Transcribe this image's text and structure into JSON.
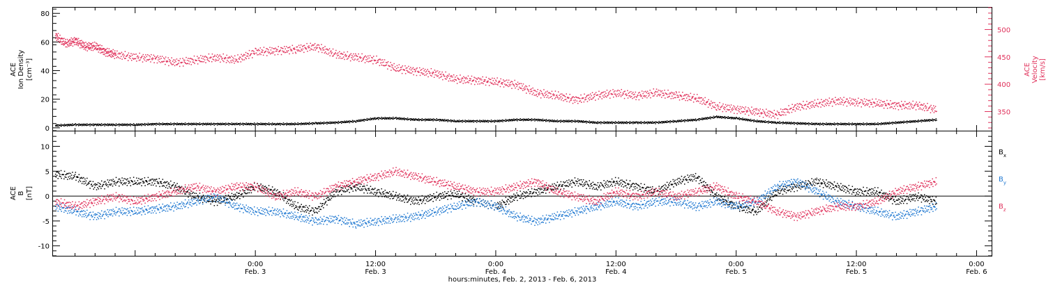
{
  "chart_data": [
    {
      "type": "scatter",
      "panel": "top",
      "xlabel": "hours:minutes, Feb. 2, 2013 - Feb. 6, 2013",
      "x_range_hours": [
        -20.2,
        73.5
      ],
      "x_ticks": [
        {
          "hour": 0,
          "time": "0:00",
          "date": "Feb. 3"
        },
        {
          "hour": 12,
          "time": "12:00",
          "date": "Feb. 3"
        },
        {
          "hour": 24,
          "time": "0:00",
          "date": "Feb. 4"
        },
        {
          "hour": 36,
          "time": "12:00",
          "date": "Feb. 4"
        },
        {
          "hour": 48,
          "time": "0:00",
          "date": "Feb. 5"
        },
        {
          "hour": 60,
          "time": "12:00",
          "date": "Feb. 5"
        },
        {
          "hour": 72,
          "time": "0:00",
          "date": "Feb. 6"
        }
      ],
      "y_left": {
        "label_lines": [
          "ACE",
          "Ion Density",
          "[cm⁻³]"
        ],
        "ylim": [
          -2,
          84
        ],
        "ticks": [
          0,
          20,
          40,
          60,
          80
        ],
        "color": "#000000"
      },
      "y_right": {
        "label_lines": [
          "ACE",
          "Velocity",
          "[km/s]"
        ],
        "ylim": [
          315,
          540
        ],
        "ticks": [
          350,
          400,
          450,
          500
        ],
        "color": "#e0305a"
      },
      "series": [
        {
          "name": "Ion Density",
          "axis": "left",
          "color": "#000000",
          "points": [
            [
              -20,
              2
            ],
            [
              -18,
              2.5
            ],
            [
              -16,
              2.5
            ],
            [
              -14,
              2.5
            ],
            [
              -12,
              2.5
            ],
            [
              -10,
              3
            ],
            [
              -8,
              3
            ],
            [
              -6,
              3
            ],
            [
              -4,
              3
            ],
            [
              -2,
              3
            ],
            [
              0,
              3
            ],
            [
              2,
              3
            ],
            [
              4,
              3
            ],
            [
              6,
              3.5
            ],
            [
              8,
              4
            ],
            [
              10,
              5
            ],
            [
              12,
              7
            ],
            [
              14,
              7
            ],
            [
              16,
              6
            ],
            [
              18,
              6
            ],
            [
              20,
              5
            ],
            [
              22,
              5
            ],
            [
              24,
              5
            ],
            [
              26,
              6
            ],
            [
              28,
              6
            ],
            [
              30,
              5
            ],
            [
              32,
              5
            ],
            [
              34,
              4
            ],
            [
              36,
              4
            ],
            [
              38,
              4
            ],
            [
              40,
              4
            ],
            [
              42,
              5
            ],
            [
              44,
              6
            ],
            [
              46,
              8
            ],
            [
              48,
              7
            ],
            [
              50,
              5
            ],
            [
              52,
              4
            ],
            [
              54,
              3.5
            ],
            [
              56,
              3
            ],
            [
              58,
              3
            ],
            [
              60,
              3
            ],
            [
              62,
              3
            ],
            [
              64,
              4
            ],
            [
              66,
              5
            ],
            [
              68,
              6
            ]
          ]
        },
        {
          "name": "Velocity",
          "axis": "right",
          "color": "#e0305a",
          "points": [
            [
              -20,
              490
            ],
            [
              -19,
              475
            ],
            [
              -18,
              480
            ],
            [
              -17,
              470
            ],
            [
              -16,
              470
            ],
            [
              -15,
              460
            ],
            [
              -14,
              455
            ],
            [
              -12,
              450
            ],
            [
              -10,
              448
            ],
            [
              -8,
              440
            ],
            [
              -6,
              445
            ],
            [
              -4,
              450
            ],
            [
              -2,
              445
            ],
            [
              0,
              460
            ],
            [
              2,
              462
            ],
            [
              4,
              465
            ],
            [
              6,
              470
            ],
            [
              8,
              455
            ],
            [
              10,
              450
            ],
            [
              12,
              445
            ],
            [
              14,
              430
            ],
            [
              16,
              425
            ],
            [
              18,
              420
            ],
            [
              20,
              410
            ],
            [
              22,
              408
            ],
            [
              24,
              405
            ],
            [
              26,
              400
            ],
            [
              28,
              385
            ],
            [
              30,
              380
            ],
            [
              32,
              372
            ],
            [
              34,
              380
            ],
            [
              36,
              385
            ],
            [
              38,
              380
            ],
            [
              40,
              385
            ],
            [
              42,
              380
            ],
            [
              44,
              375
            ],
            [
              46,
              360
            ],
            [
              48,
              355
            ],
            [
              50,
              350
            ],
            [
              52,
              345
            ],
            [
              54,
              360
            ],
            [
              56,
              365
            ],
            [
              58,
              370
            ],
            [
              60,
              368
            ],
            [
              62,
              366
            ],
            [
              64,
              362
            ],
            [
              66,
              362
            ],
            [
              68,
              354
            ]
          ]
        }
      ]
    },
    {
      "type": "scatter",
      "panel": "bottom",
      "x_range_hours": [
        -20.2,
        73.5
      ],
      "y": {
        "label_lines": [
          "ACE",
          "B",
          "[nT]"
        ],
        "ylim": [
          -12,
          13
        ],
        "ticks": [
          -10,
          -5,
          0,
          5,
          10
        ]
      },
      "zero_line": true,
      "series": [
        {
          "name": "Bx",
          "legend_base": "B",
          "legend_sub": "x",
          "color": "#000000",
          "points": [
            [
              -20,
              4.5
            ],
            [
              -18,
              4
            ],
            [
              -16,
              2
            ],
            [
              -14,
              3
            ],
            [
              -12,
              3
            ],
            [
              -10,
              3
            ],
            [
              -8,
              2
            ],
            [
              -6,
              0
            ],
            [
              -4,
              -1
            ],
            [
              -2,
              0
            ],
            [
              0,
              2
            ],
            [
              2,
              1
            ],
            [
              4,
              -2
            ],
            [
              6,
              -3
            ],
            [
              8,
              1
            ],
            [
              10,
              2
            ],
            [
              12,
              1
            ],
            [
              14,
              0
            ],
            [
              16,
              -1
            ],
            [
              18,
              0
            ],
            [
              20,
              0.5
            ],
            [
              22,
              -1
            ],
            [
              24,
              -2
            ],
            [
              26,
              0
            ],
            [
              28,
              1
            ],
            [
              30,
              2
            ],
            [
              32,
              3
            ],
            [
              34,
              2
            ],
            [
              36,
              3
            ],
            [
              38,
              2
            ],
            [
              40,
              1
            ],
            [
              42,
              3
            ],
            [
              44,
              4
            ],
            [
              46,
              0
            ],
            [
              48,
              -2
            ],
            [
              50,
              -3
            ],
            [
              52,
              1
            ],
            [
              54,
              2
            ],
            [
              56,
              3
            ],
            [
              58,
              2
            ],
            [
              60,
              1
            ],
            [
              62,
              1
            ],
            [
              64,
              -1
            ],
            [
              66,
              0
            ],
            [
              68,
              -1
            ]
          ]
        },
        {
          "name": "By",
          "legend_base": "B",
          "legend_sub": "y",
          "color": "#1f78d1",
          "points": [
            [
              -20,
              -2
            ],
            [
              -18,
              -3
            ],
            [
              -16,
              -4
            ],
            [
              -14,
              -3
            ],
            [
              -12,
              -3
            ],
            [
              -10,
              -2.5
            ],
            [
              -8,
              -2
            ],
            [
              -6,
              -1
            ],
            [
              -4,
              0
            ],
            [
              -2,
              -2
            ],
            [
              0,
              -3
            ],
            [
              2,
              -3
            ],
            [
              4,
              -4
            ],
            [
              6,
              -5
            ],
            [
              8,
              -4.5
            ],
            [
              10,
              -5.5
            ],
            [
              12,
              -5
            ],
            [
              14,
              -4.5
            ],
            [
              16,
              -4
            ],
            [
              18,
              -3
            ],
            [
              20,
              -2
            ],
            [
              22,
              -1
            ],
            [
              24,
              -2
            ],
            [
              26,
              -4
            ],
            [
              28,
              -5
            ],
            [
              30,
              -4
            ],
            [
              32,
              -3
            ],
            [
              34,
              -2
            ],
            [
              36,
              -1
            ],
            [
              38,
              -2
            ],
            [
              40,
              -1
            ],
            [
              42,
              -1
            ],
            [
              44,
              -2
            ],
            [
              46,
              -1
            ],
            [
              48,
              -2
            ],
            [
              50,
              -1
            ],
            [
              52,
              2
            ],
            [
              54,
              3
            ],
            [
              56,
              1
            ],
            [
              58,
              -1
            ],
            [
              60,
              -2
            ],
            [
              62,
              -3
            ],
            [
              64,
              -4
            ],
            [
              66,
              -3
            ],
            [
              68,
              -2
            ]
          ]
        },
        {
          "name": "Bz",
          "legend_base": "B",
          "legend_sub": "z",
          "color": "#e0305a",
          "points": [
            [
              -20,
              -1
            ],
            [
              -18,
              -2
            ],
            [
              -16,
              -1
            ],
            [
              -14,
              0
            ],
            [
              -12,
              -1
            ],
            [
              -10,
              0
            ],
            [
              -8,
              1
            ],
            [
              -6,
              2
            ],
            [
              -4,
              1
            ],
            [
              -2,
              2
            ],
            [
              0,
              2
            ],
            [
              2,
              0
            ],
            [
              4,
              1
            ],
            [
              6,
              0
            ],
            [
              8,
              2
            ],
            [
              10,
              3
            ],
            [
              12,
              4
            ],
            [
              14,
              5
            ],
            [
              16,
              4
            ],
            [
              18,
              3
            ],
            [
              20,
              2
            ],
            [
              22,
              1
            ],
            [
              24,
              1
            ],
            [
              26,
              2
            ],
            [
              28,
              3
            ],
            [
              30,
              1
            ],
            [
              32,
              0
            ],
            [
              34,
              -1
            ],
            [
              36,
              1
            ],
            [
              38,
              0
            ],
            [
              40,
              1
            ],
            [
              42,
              0
            ],
            [
              44,
              1
            ],
            [
              46,
              2
            ],
            [
              48,
              0
            ],
            [
              50,
              -1
            ],
            [
              52,
              -3
            ],
            [
              54,
              -4
            ],
            [
              56,
              -3
            ],
            [
              58,
              -2
            ],
            [
              60,
              -2
            ],
            [
              62,
              -1
            ],
            [
              64,
              1
            ],
            [
              66,
              2
            ],
            [
              68,
              3
            ]
          ]
        }
      ]
    }
  ]
}
